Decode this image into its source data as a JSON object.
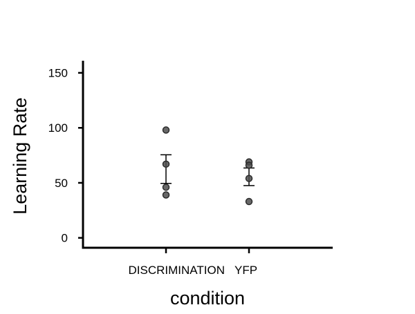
{
  "chart_data": {
    "type": "scatter",
    "title": "",
    "xlabel": "condition",
    "ylabel": "Learning Rate",
    "categories": [
      "DISCRIMINATION",
      "YFP"
    ],
    "ylim": [
      -9,
      161
    ],
    "yticks": [
      0,
      50,
      100,
      150
    ],
    "grid": false,
    "legend": "none",
    "series": [
      {
        "category": "DISCRIMINATION",
        "points": [
          98,
          67,
          46,
          39
        ],
        "mean": 62.5,
        "error_low": 49.5,
        "error_high": 75.5
      },
      {
        "category": "YFP",
        "points": [
          69,
          66,
          54,
          33
        ],
        "mean": 55.5,
        "error_low": 47.5,
        "error_high": 63.5
      }
    ],
    "colors": {
      "point": "#4d4d4d",
      "point_stroke": "#2b2b2b",
      "errorbar": "#000000",
      "axis": "#000000"
    }
  }
}
